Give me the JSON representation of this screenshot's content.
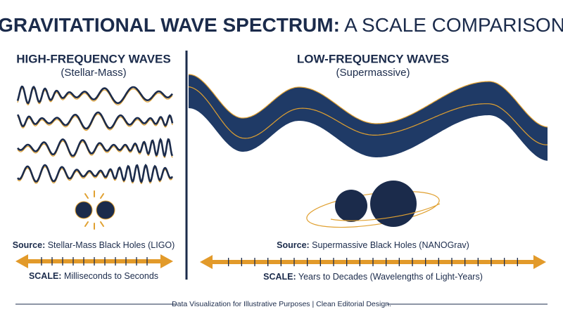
{
  "title": {
    "bold": "GRAVITATIONAL WAVE SPECTRUM:",
    "regular": " A SCALE COMPARISON"
  },
  "left": {
    "heading": "HIGH-FREQUENCY WAVES",
    "subheading": "(Stellar-Mass)",
    "source_label": "Source:",
    "source": " Stellar-Mass Black Holes (LIGO)",
    "scale_label": "SCALE:",
    "scale": " Milliseconds to Seconds"
  },
  "right": {
    "heading": "LOW-FREQUENCY WAVES",
    "subheading": "(Supermassive)",
    "source_label": "Source:",
    "source": " Supermassive Black Holes (NANOGrav)",
    "scale_label": "SCALE:",
    "scale": " Years to Decades (Wavelengths of Light-Years)"
  },
  "footer": "Data Visualization for Illustrative Purposes | Clean Editorial Design."
}
